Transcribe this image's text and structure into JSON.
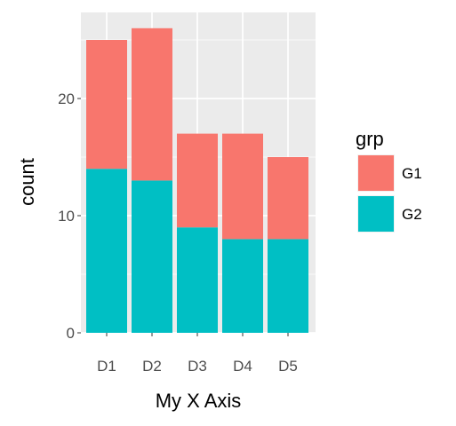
{
  "chart_data": {
    "type": "bar",
    "stacked": true,
    "categories": [
      "D1",
      "D2",
      "D3",
      "D4",
      "D5"
    ],
    "series": [
      {
        "name": "G2",
        "values": [
          14,
          13,
          9,
          8,
          8
        ],
        "color": "#00BFC4"
      },
      {
        "name": "G1",
        "values": [
          11,
          13,
          8,
          9,
          7
        ],
        "color": "#F8766D"
      }
    ],
    "totals": [
      25,
      26,
      17,
      17,
      15
    ],
    "title": "",
    "xlabel": "My X Axis",
    "ylabel": "count",
    "ylim": [
      0,
      26
    ],
    "yticks": [
      0,
      10,
      20
    ],
    "grid": true,
    "panel_background": "#EBEBEB",
    "grid_color": "#FFFFFF",
    "legend": {
      "title": "grp",
      "position": "right",
      "entries": [
        {
          "label": "G1",
          "color": "#F8766D"
        },
        {
          "label": "G2",
          "color": "#00BFC4"
        }
      ]
    }
  }
}
